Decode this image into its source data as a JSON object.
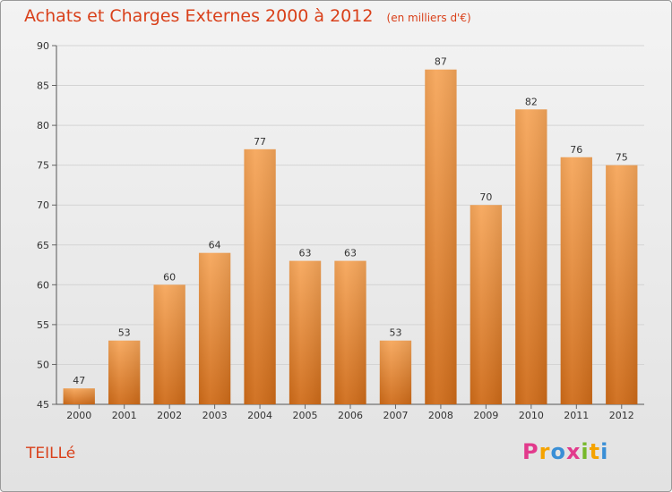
{
  "header": {
    "title": "Achats et Charges Externes 2000 à 2012",
    "subtitle": "(en milliers d'€)"
  },
  "footer": {
    "place": "TEILLé",
    "brand": [
      "P",
      "r",
      "o",
      "x",
      "i",
      "t",
      "i"
    ],
    "brand_colors": [
      "#e23a8c",
      "#f5a300",
      "#3a8fd6",
      "#e23a8c",
      "#76b82a",
      "#f5a300",
      "#3a8fd6"
    ]
  },
  "colors": {
    "title": "#d9401a",
    "bar_light": "#f6a65a",
    "bar_dark": "#cf6b18"
  },
  "chart_data": {
    "type": "bar",
    "categories": [
      "2000",
      "2001",
      "2002",
      "2003",
      "2004",
      "2005",
      "2006",
      "2007",
      "2008",
      "2009",
      "2010",
      "2011",
      "2012"
    ],
    "values": [
      47,
      53,
      60,
      64,
      77,
      63,
      63,
      53,
      87,
      70,
      82,
      76,
      75
    ],
    "title": "Achats et Charges Externes 2000 à 2012",
    "xlabel": "",
    "ylabel": "",
    "ylim": [
      45,
      90
    ],
    "yticks": [
      45,
      50,
      55,
      60,
      65,
      70,
      75,
      80,
      85,
      90
    ],
    "grid": true
  }
}
